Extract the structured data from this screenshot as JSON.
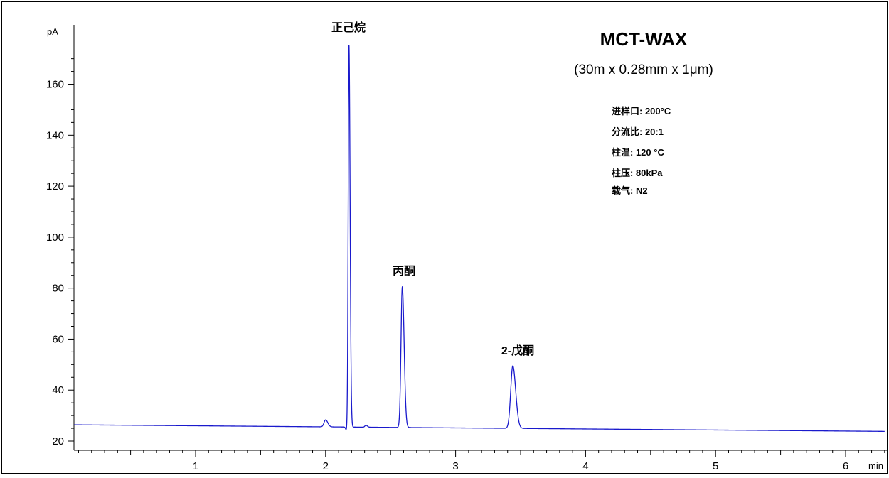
{
  "chart_data": {
    "type": "line",
    "title": "MCT-WAX",
    "subtitle": "(30m x 0.28mm x 1μm)",
    "ylabel": "pA",
    "xlabel": "min",
    "xlim": [
      0.0,
      6.3
    ],
    "ylim": [
      18,
      175
    ],
    "yticks": [
      20,
      40,
      60,
      80,
      100,
      120,
      140,
      160
    ],
    "xticks": [
      1,
      2,
      3,
      4,
      5,
      6
    ],
    "line_color": "#1a1acc",
    "baseline": {
      "start": 26.4,
      "end": 23.8
    },
    "peaks": [
      {
        "name": "正己烷",
        "rt": 2.18,
        "height": 175.5,
        "width": 0.006
      },
      {
        "name": "丙酮",
        "rt": 2.59,
        "height": 80.5,
        "width": 0.01
      },
      {
        "name": "2-戊酮",
        "rt": 3.44,
        "height": 49.5,
        "width": 0.016
      }
    ],
    "minor_peaks": [
      {
        "rt": 2.0,
        "height": 28.3,
        "width": 0.012
      },
      {
        "rt": 2.31,
        "height": 26.2,
        "width": 0.008
      }
    ],
    "annotations": [
      "进样口: 200°C",
      "分流比: 20:1",
      "柱温: 120 °C",
      "柱压: 80kPa",
      "载气: N2"
    ]
  }
}
